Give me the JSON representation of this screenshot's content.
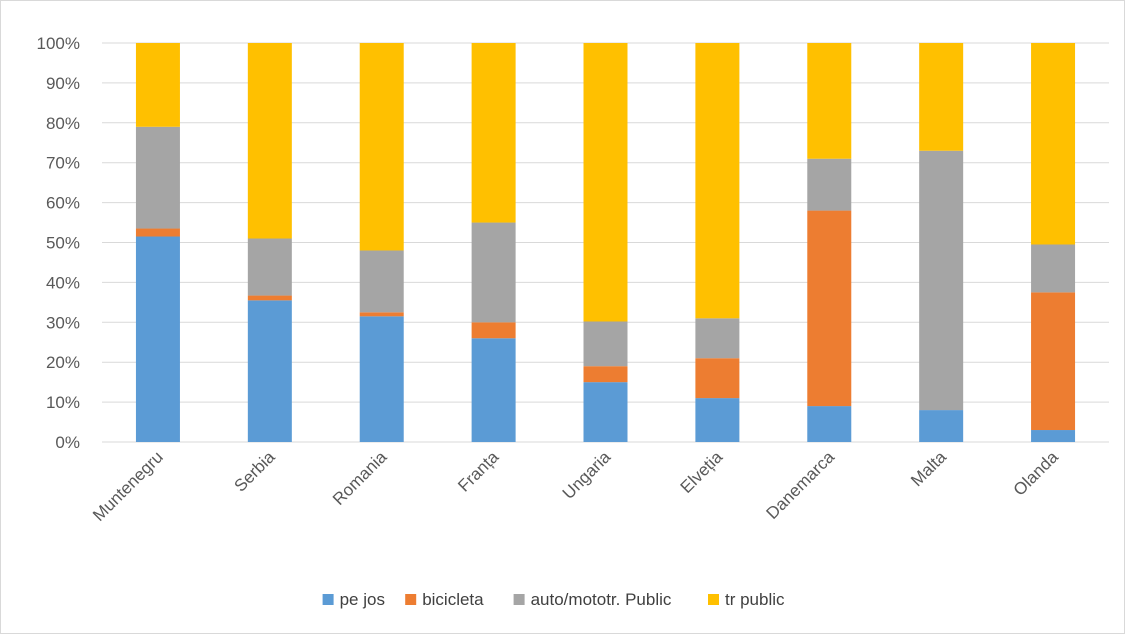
{
  "chart_data": {
    "type": "bar",
    "stacking": "percent",
    "categories": [
      "Muntenegru",
      "Serbia",
      "Romania",
      "Franța",
      "Ungaria",
      "Elveția",
      "Danemarca",
      "Malta",
      "Olanda"
    ],
    "series": [
      {
        "name": "pe jos",
        "color": "#5B9BD5",
        "values": [
          51.5,
          35.5,
          31.5,
          26,
          15,
          11,
          9,
          8,
          3
        ]
      },
      {
        "name": "bicicleta",
        "color": "#ED7D31",
        "values": [
          2,
          1.2,
          1,
          4,
          4,
          10,
          49,
          0,
          34.5
        ]
      },
      {
        "name": "auto/mototr. Public",
        "color": "#A5A5A5",
        "values": [
          25.5,
          14.3,
          15.5,
          25,
          11.2,
          10,
          13,
          65,
          12
        ]
      },
      {
        "name": "tr public",
        "color": "#FFC000",
        "values": [
          21,
          49,
          52,
          45,
          69.8,
          69,
          29,
          27,
          50.5
        ]
      }
    ],
    "ylim": [
      0,
      100
    ],
    "yticks": [
      "0%",
      "10%",
      "20%",
      "30%",
      "40%",
      "50%",
      "60%",
      "70%",
      "80%",
      "90%",
      "100%"
    ],
    "grid": true,
    "legend": "bottom"
  }
}
